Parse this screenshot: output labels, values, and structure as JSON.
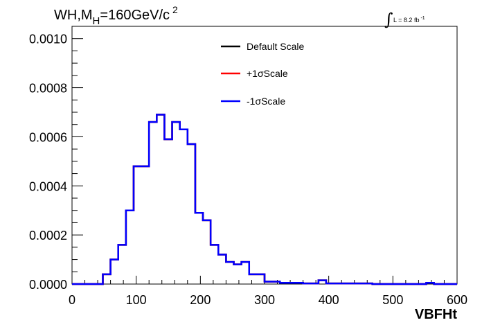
{
  "chart_data": {
    "type": "line",
    "title_parts": {
      "main": "WH,M",
      "sub": "H",
      "rest": "=160GeV/c",
      "sup": "2"
    },
    "lumi": {
      "integral_symbol": "∫",
      "text": "L = 8.2 fb",
      "sup": "-1"
    },
    "xlabel": "VBFHt",
    "ylabel": "",
    "xlim": [
      0,
      600
    ],
    "ylim": [
      0,
      0.00105
    ],
    "x_ticks": [
      "0",
      "100",
      "200",
      "300",
      "400",
      "500",
      "600"
    ],
    "x_tick_values": [
      0,
      100,
      200,
      300,
      400,
      500,
      600
    ],
    "y_ticks": [
      "0.0000",
      "0.0002",
      "0.0004",
      "0.0006",
      "0.0008",
      "0.0010"
    ],
    "y_tick_values": [
      0,
      0.0002,
      0.0004,
      0.0006,
      0.0008,
      0.001
    ],
    "bin_edges": [
      0,
      12,
      24,
      36,
      48,
      60,
      72,
      84,
      96,
      108,
      120,
      132,
      144,
      156,
      168,
      180,
      192,
      204,
      216,
      228,
      240,
      252,
      264,
      276,
      288,
      300,
      312,
      324,
      336,
      348,
      360,
      372,
      384,
      396,
      408,
      420,
      432,
      444,
      456,
      468,
      480,
      492,
      504,
      516,
      528,
      540,
      552,
      564,
      576,
      588,
      600
    ],
    "series": [
      {
        "name": "Default Scale",
        "color": "#000000",
        "values": [
          0,
          0,
          0,
          0,
          4e-05,
          0.0001,
          0.00016,
          0.0003,
          0.00048,
          0.00048,
          0.00066,
          0.00069,
          0.00059,
          0.00066,
          0.00063,
          0.00057,
          0.00029,
          0.00026,
          0.00016,
          0.00012,
          9e-05,
          8e-05,
          9e-05,
          4e-05,
          4e-05,
          1e-05,
          1e-05,
          5e-06,
          5e-06,
          5e-06,
          2.5e-06,
          2.5e-06,
          1.5e-05,
          2.5e-06,
          2.5e-06,
          2.5e-06,
          2.5e-06,
          2.5e-06,
          2.5e-06,
          0,
          0,
          0,
          0,
          0,
          0,
          0,
          5e-06,
          0,
          0,
          0
        ]
      },
      {
        "name": "+1σScale",
        "color": "#ff0000",
        "values": [
          0,
          0,
          0,
          0,
          4e-05,
          0.0001,
          0.00016,
          0.0003,
          0.00048,
          0.00048,
          0.00066,
          0.00069,
          0.00059,
          0.00066,
          0.00063,
          0.00057,
          0.00029,
          0.00026,
          0.00016,
          0.00012,
          9e-05,
          8e-05,
          9e-05,
          4e-05,
          4e-05,
          1e-05,
          1e-05,
          5e-06,
          5e-06,
          5e-06,
          2.5e-06,
          2.5e-06,
          1.5e-05,
          2.5e-06,
          2.5e-06,
          2.5e-06,
          2.5e-06,
          2.5e-06,
          2.5e-06,
          0,
          0,
          0,
          0,
          0,
          0,
          0,
          5e-06,
          0,
          0,
          0
        ]
      },
      {
        "name": "-1σScale",
        "color": "#0000ff",
        "values": [
          0,
          0,
          0,
          0,
          4e-05,
          0.0001,
          0.00016,
          0.0003,
          0.00048,
          0.00048,
          0.00066,
          0.00069,
          0.00059,
          0.00066,
          0.00063,
          0.00057,
          0.00029,
          0.00026,
          0.00016,
          0.00012,
          9e-05,
          8e-05,
          9e-05,
          4e-05,
          4e-05,
          1e-05,
          1e-05,
          5e-06,
          5e-06,
          5e-06,
          2.5e-06,
          2.5e-06,
          1.5e-05,
          2.5e-06,
          2.5e-06,
          2.5e-06,
          2.5e-06,
          2.5e-06,
          2.5e-06,
          0,
          0,
          0,
          0,
          0,
          0,
          0,
          5e-06,
          0,
          0,
          0
        ]
      }
    ],
    "legend_position": "top-right",
    "grid": false
  }
}
